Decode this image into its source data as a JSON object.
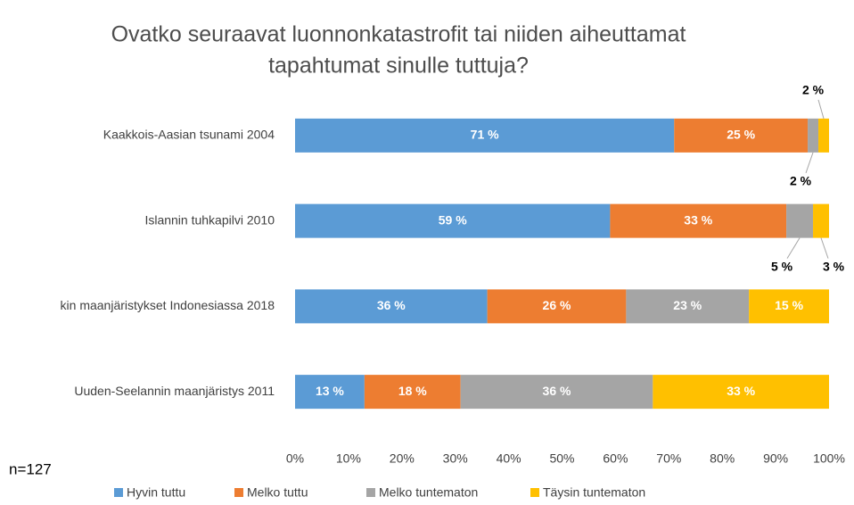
{
  "chart_data": {
    "type": "stacked_hbar",
    "title": [
      "Ovatko seuraavat luonnonkatastrofit tai niiden aiheuttamat",
      "tapahtumat sinulle tuttuja?"
    ],
    "note": "n=127",
    "categories": [
      "Kaakkois-Aasian tsunami 2004",
      "Islannin tuhkapilvi 2010",
      "kin maanjäristykset Indonesiassa 2018",
      "Uuden-Seelannin maanjäristys 2011"
    ],
    "series": [
      {
        "name": "Hyvin tuttu",
        "color": "#5b9bd5",
        "values": [
          71,
          59,
          36,
          13
        ],
        "value_labels": [
          "71 %",
          "59 %",
          "36 %",
          "13 %"
        ]
      },
      {
        "name": "Melko tuttu",
        "color": "#ed7d31",
        "values": [
          25,
          33,
          26,
          18
        ],
        "value_labels": [
          "25 %",
          "33 %",
          "26 %",
          "18 %"
        ]
      },
      {
        "name": "Melko tuntematon",
        "color": "#a5a5a5",
        "values": [
          2,
          5,
          23,
          36
        ],
        "value_labels": [
          "2 %",
          "5 %",
          "23 %",
          "36 %"
        ]
      },
      {
        "name": "Täysin tuntematon",
        "color": "#ffc000",
        "values": [
          2,
          3,
          15,
          33
        ],
        "value_labels": [
          "2 %",
          "3 %",
          "15 %",
          "33 %"
        ]
      }
    ],
    "xlim": [
      0,
      100
    ],
    "xticks": [
      {
        "value": 0,
        "label": "0%"
      },
      {
        "value": 10,
        "label": "10%"
      },
      {
        "value": 20,
        "label": "20%"
      },
      {
        "value": 30,
        "label": "30%"
      },
      {
        "value": 40,
        "label": "40%"
      },
      {
        "value": 50,
        "label": "50%"
      },
      {
        "value": 60,
        "label": "60%"
      },
      {
        "value": 70,
        "label": "70%"
      },
      {
        "value": 80,
        "label": "80%"
      },
      {
        "value": 90,
        "label": "90%"
      },
      {
        "value": 100,
        "label": "100%"
      }
    ],
    "legend": "bottom"
  }
}
